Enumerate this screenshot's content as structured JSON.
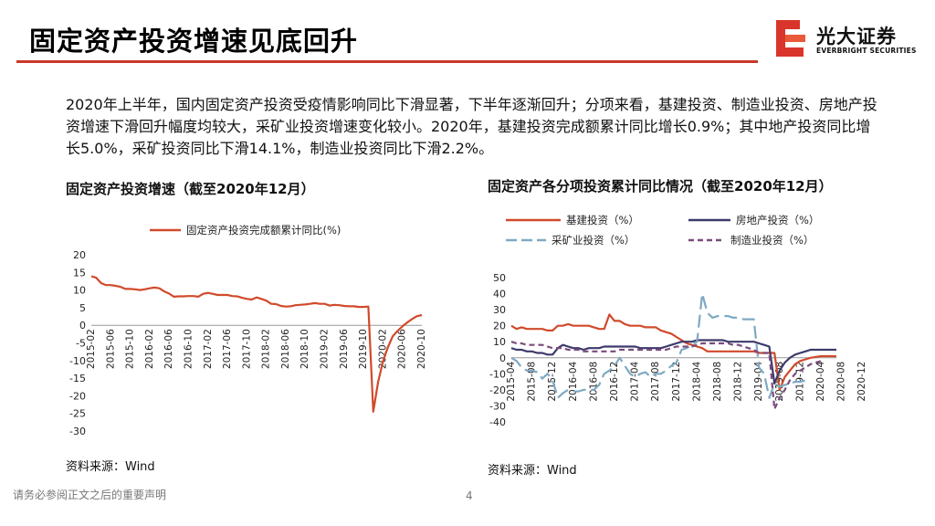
{
  "header": {
    "title": "固定资产投资增速见底回升",
    "logo_cn": "光大证券",
    "logo_en": "EVERBRIGHT SECURITIES"
  },
  "body_text": "2020年上半年，国内固定资产投资受疫情影响同比下滑显著，下半年逐渐回升；分项来看，基建投资、制造业投资、房地产投资增速下滑回升幅度均较大，采矿业投资增速变化较小。2020年，基建投资完成额累计同比增长0.9%；其中地产投资同比增长5.0%，采矿投资同比下滑14.1%，制造业投资同比下滑2.2%。",
  "footer": {
    "disclaimer": "请务必参阅正文之后的重要声明",
    "page": "4"
  },
  "colors": {
    "accent": "#c8392b",
    "infra": "#d14a2b",
    "realestate": "#3d3a6b",
    "mining": "#7fa9c3",
    "manufacturing": "#7a4a7e"
  },
  "chart_data": [
    {
      "type": "line",
      "title": "固定资产投资增速（截至2020年12月）",
      "source": "资料来源：Wind",
      "legend_position": "top",
      "ylim": [
        -30,
        20
      ],
      "yticks": [
        -30,
        -25,
        -20,
        -15,
        -10,
        -5,
        0,
        5,
        10,
        15,
        20
      ],
      "xticks": [
        "2015-02",
        "2015-06",
        "2015-10",
        "2016-02",
        "2016-06",
        "2016-10",
        "2017-02",
        "2017-06",
        "2017-10",
        "2018-02",
        "2018-06",
        "2018-10",
        "2019-02",
        "2019-06",
        "2019-10",
        "2020-02",
        "2020-06",
        "2020-10"
      ],
      "series": [
        {
          "name": "固定资产投资完成额累计同比(%)",
          "color": "#d14a2b",
          "x_start": "2015-02",
          "values": [
            13.9,
            13.5,
            12.0,
            11.4,
            11.4,
            11.2,
            10.9,
            10.3,
            10.3,
            10.2,
            10.0,
            10.2,
            10.5,
            10.7,
            10.5,
            9.6,
            9.0,
            8.1,
            8.2,
            8.2,
            8.3,
            8.3,
            8.1,
            8.9,
            9.2,
            8.9,
            8.6,
            8.6,
            8.6,
            8.3,
            8.2,
            7.8,
            7.5,
            7.3,
            7.9,
            7.5,
            7.0,
            6.1,
            6.0,
            5.5,
            5.3,
            5.4,
            5.7,
            5.8,
            5.9,
            6.1,
            6.3,
            6.1,
            6.1,
            5.6,
            5.8,
            5.7,
            5.5,
            5.4,
            5.4,
            5.2,
            5.2,
            5.3,
            -24.5,
            -16.1,
            -10.3,
            -6.3,
            -3.1,
            -1.6,
            -0.3,
            0.8,
            1.8,
            2.6,
            2.9
          ]
        }
      ]
    },
    {
      "type": "line",
      "title": "固定资产各分项投资累计同比情况（截至2020年12月）",
      "source": "资料来源：Wind",
      "legend_position": "top",
      "ylim": [
        -40,
        50
      ],
      "yticks": [
        -40,
        -30,
        -20,
        -10,
        0,
        10,
        20,
        30,
        40,
        50
      ],
      "xticks": [
        "2015-04",
        "2015-08",
        "2015-12",
        "2016-04",
        "2016-08",
        "2016-12",
        "2017-04",
        "2017-08",
        "2017-12",
        "2018-04",
        "2018-08",
        "2018-12",
        "2019-04",
        "2019-08",
        "2019-12",
        "2020-04",
        "2020-08",
        "2020-12"
      ],
      "series": [
        {
          "name": "基建投资（%）",
          "color": "#d14a2b",
          "style": "solid",
          "x_start": "2015-04",
          "values": [
            20,
            18,
            19,
            18,
            18,
            18,
            18,
            17,
            17,
            20,
            20,
            21,
            20,
            20,
            20,
            20,
            19,
            18,
            18,
            27,
            23,
            23,
            21,
            20,
            20,
            20,
            19,
            19,
            19,
            17,
            16,
            15,
            13,
            11,
            9,
            8,
            7,
            6,
            4,
            4,
            4,
            4,
            4,
            4,
            4,
            4,
            4,
            4,
            3,
            3,
            3,
            3,
            -20,
            -12,
            -8,
            -4,
            -2,
            -1,
            0,
            0.5,
            1,
            1,
            1,
            0.9
          ]
        },
        {
          "name": "房地产投资（%）",
          "color": "#3d3a6b",
          "style": "solid",
          "x_start": "2015-04",
          "values": [
            6,
            5,
            5,
            4,
            4,
            3,
            3,
            2,
            2,
            6,
            8,
            7,
            6,
            6,
            5,
            6,
            6,
            6,
            7,
            7,
            7,
            7,
            7,
            7,
            7,
            6,
            6,
            6,
            6,
            6,
            7,
            8,
            9,
            10,
            10,
            10,
            11,
            11,
            11,
            11,
            11,
            11,
            10,
            10,
            10,
            10,
            10,
            10,
            9,
            8,
            7,
            -16,
            -8,
            -3,
            0,
            2,
            3,
            4,
            5,
            5,
            5,
            5,
            5,
            5.0
          ]
        },
        {
          "name": "采矿业投资（%）",
          "color": "#7fa9c3",
          "style": "dashed",
          "x_start": "2015-04",
          "values": [
            0,
            -2,
            -6,
            -8,
            -8,
            -9,
            -13,
            -10,
            -14,
            -25,
            -22,
            -20,
            -21,
            -21,
            -20,
            -20,
            -20,
            -17,
            -10,
            -8,
            -5,
            0,
            -5,
            -10,
            -12,
            -10,
            -9,
            -12,
            -10,
            -10,
            -8,
            -5,
            -3,
            5,
            6,
            8,
            10,
            40,
            28,
            25,
            26,
            26,
            26,
            25,
            25,
            24,
            24,
            24,
            -6,
            -10,
            -25,
            -16,
            -18,
            -17,
            -16,
            -15,
            -15,
            -14.1
          ]
        },
        {
          "name": "制造业投资（%）",
          "color": "#7a4a7e",
          "style": "dashed",
          "x_start": "2015-04",
          "values": [
            10,
            9,
            9,
            8,
            8,
            8,
            8,
            7,
            6,
            6,
            6,
            5,
            5,
            5,
            4,
            4,
            4,
            4,
            4,
            4,
            4,
            5,
            5,
            5,
            5,
            5,
            5,
            5,
            5,
            5,
            5,
            6,
            7,
            7,
            7,
            7,
            8,
            9,
            9,
            9,
            9,
            9,
            9,
            8,
            8,
            7,
            6,
            5,
            3,
            3,
            3,
            -32,
            -25,
            -20,
            -14,
            -10,
            -8,
            -6,
            -4,
            -3,
            -2.2
          ]
        }
      ]
    }
  ]
}
